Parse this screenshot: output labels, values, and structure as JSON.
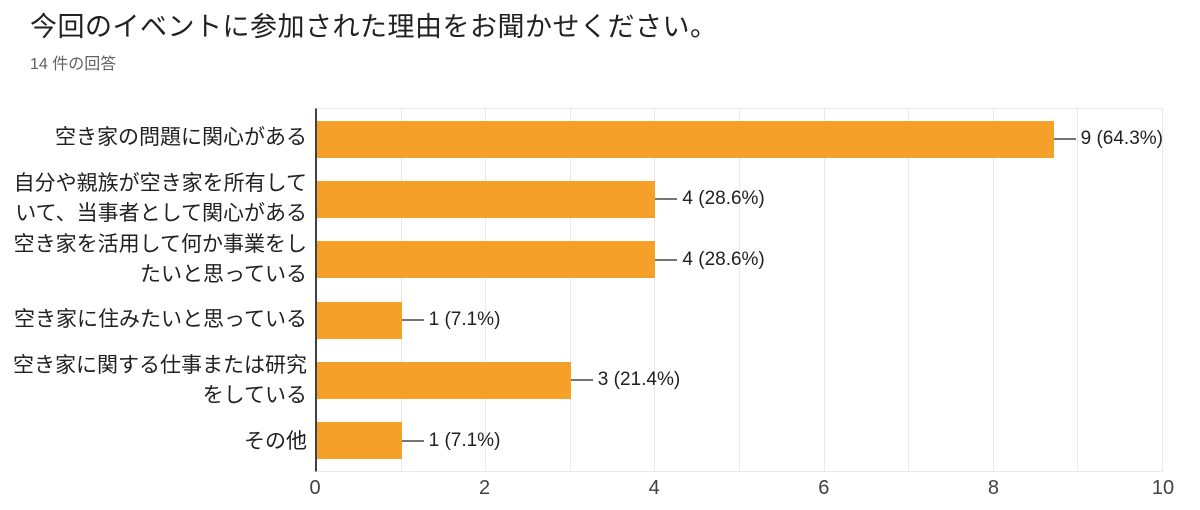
{
  "page": {
    "title": "今回のイベントに参加された理由をお聞かせください。",
    "subtitle": "14 件の回答"
  },
  "colors": {
    "bar": "#f5a028",
    "axis": "#424242",
    "gridline": "#e9e9e9",
    "title_text": "#212121",
    "subtitle_text": "#616161",
    "label_text": "#212121",
    "value_text": "#212121",
    "tick_text": "#424242",
    "callout_line": "#757575"
  },
  "chart_data": {
    "type": "bar",
    "orientation": "horizontal",
    "title": "今回のイベントに参加された理由をお聞かせください。",
    "subtitle": "14 件の回答",
    "total_responses": 14,
    "categories": [
      "空き家の問題に関心がある",
      "自分や親族が空き家を所有していて、当事者として関心がある",
      "空き家を活用して何か事業をしたいと思っている",
      "空き家に住みたいと思っている",
      "空き家に関する仕事または研究をしている",
      "その他"
    ],
    "category_label_lines": [
      [
        "空き家の問題に関心がある"
      ],
      [
        "自分や親族が空き家を所有して",
        "いて、当事者として関心がある"
      ],
      [
        "空き家を活用して何か事業をし",
        "たいと思っている"
      ],
      [
        "空き家に住みたいと思っている"
      ],
      [
        "空き家に関する仕事または研究",
        "をしている"
      ],
      [
        "その他"
      ]
    ],
    "values": [
      9,
      4,
      4,
      1,
      3,
      1
    ],
    "value_labels": [
      "9 (64.3%)",
      "4 (28.6%)",
      "4 (28.6%)",
      "1 (7.1%)",
      "3 (21.4%)",
      "1 (7.1%)"
    ],
    "xlabel": "",
    "ylabel": "",
    "xlim": [
      0,
      10
    ],
    "xticks": [
      0,
      2,
      4,
      6,
      8,
      10
    ],
    "gridline_every": 1,
    "grid": "on",
    "legend_position": "none"
  }
}
